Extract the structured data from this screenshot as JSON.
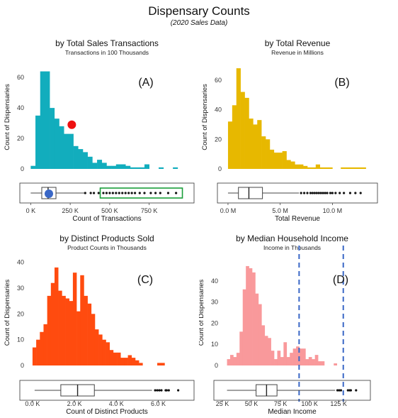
{
  "figure": {
    "title": "Dispensary Counts",
    "subtitle": "(2020 Sales Data)"
  },
  "chart_data": [
    {
      "id": "A",
      "type": "histogram",
      "title": "by Total Sales Transactions",
      "subtitle": "Transactions in 100 Thousands",
      "tag": "(A)",
      "ylabel": "Count of Dispensaries",
      "xlabel": "Count of Transactions",
      "color": "#12adbd",
      "ylim": [
        0,
        68
      ],
      "xlim": [
        -15000,
        980000
      ],
      "yticks": [
        0,
        20,
        40,
        60
      ],
      "xticks": [
        {
          "v": 0,
          "label": "0 K"
        },
        {
          "v": 250000,
          "label": "250 K"
        },
        {
          "v": 500000,
          "label": "500 K"
        },
        {
          "v": 750000,
          "label": "750 K"
        }
      ],
      "bin_start": 0,
      "bin_width": 30000,
      "counts": [
        2,
        35,
        64,
        64,
        40,
        33,
        28,
        23,
        23,
        15,
        13,
        11,
        8,
        4,
        6,
        4,
        2,
        2,
        3,
        3,
        2,
        1,
        1,
        1,
        3,
        0,
        0,
        1,
        0,
        0,
        1
      ],
      "marker_point": {
        "x": 260000,
        "y": 29,
        "color": "#ee1111"
      },
      "boxplot": {
        "min": 0,
        "q1": 70000,
        "median": 110000,
        "q3": 160000,
        "whisker_high": 340000,
        "outliers": [
          345000,
          380000,
          400000,
          430000,
          460000,
          480000,
          500000,
          520000,
          540000,
          560000,
          580000,
          600000,
          620000,
          640000,
          660000,
          690000,
          720000,
          760000,
          790000,
          820000,
          870000,
          920000
        ]
      },
      "box_marker": {
        "x": 115000,
        "color": "#3a67c6"
      },
      "highlight_range": [
        440000,
        960000
      ],
      "highlight_color": "#1a9e3a"
    },
    {
      "id": "B",
      "type": "histogram",
      "title": "by Total Revenue",
      "subtitle": "Revenue in Millions",
      "tag": "(B)",
      "ylabel": "Count of Dispensaries",
      "xlabel": "Total Revenue",
      "color": "#e7b800",
      "ylim": [
        0,
        70
      ],
      "xlim": [
        -200000,
        13500000
      ],
      "yticks": [
        0,
        20,
        40,
        60
      ],
      "xticks": [
        {
          "v": 0,
          "label": "0.0 M"
        },
        {
          "v": 5000000,
          "label": "5.0 M"
        },
        {
          "v": 10000000,
          "label": "10.0 M"
        }
      ],
      "bin_start": 0,
      "bin_width": 400000,
      "counts": [
        32,
        43,
        68,
        52,
        48,
        34,
        30,
        33,
        22,
        20,
        13,
        11,
        11,
        12,
        6,
        5,
        3,
        3,
        2,
        1,
        1,
        3,
        1,
        1,
        1,
        0,
        0,
        1,
        1,
        1,
        1,
        1,
        1
      ],
      "boxplot": {
        "min": 0,
        "q1": 1000000,
        "median": 2000000,
        "q3": 3300000,
        "whisker_high": 6800000,
        "outliers": [
          7000000,
          7300000,
          7600000,
          7900000,
          8100000,
          8300000,
          8500000,
          8700000,
          8900000,
          9100000,
          9300000,
          9500000,
          9800000,
          10000000,
          10300000,
          10700000,
          11100000,
          11700000,
          12200000,
          12700000
        ]
      }
    },
    {
      "id": "C",
      "type": "histogram",
      "title": "by Distinct Products Sold",
      "subtitle": "Product Counts in Thousands",
      "tag": "(C)",
      "ylabel": "Count of Dispensaries",
      "xlabel": "Count of Distinct Products",
      "color": "#ff4b0f",
      "ylim": [
        0,
        41
      ],
      "xlim": [
        -200,
        7300
      ],
      "yticks": [
        0,
        10,
        20,
        30,
        40
      ],
      "xticks": [
        {
          "v": 0,
          "label": "0.0 K"
        },
        {
          "v": 2000,
          "label": "2.0 K"
        },
        {
          "v": 4000,
          "label": "4.0 K"
        },
        {
          "v": 6000,
          "label": "6.0 K"
        }
      ],
      "bin_start": 0,
      "bin_width": 175,
      "counts": [
        7,
        10,
        13,
        16,
        27,
        32,
        38,
        29,
        27,
        26,
        25,
        36,
        21,
        35,
        27,
        24,
        20,
        14,
        12,
        10,
        9,
        6,
        5,
        5,
        3,
        3,
        4,
        3,
        2,
        1,
        0,
        0,
        0,
        0,
        1,
        1,
        0,
        0,
        0,
        0
      ],
      "boxplot": {
        "min": 100,
        "q1": 1350,
        "median": 2150,
        "q3": 2950,
        "whisker_high": 5700,
        "outliers": [
          5850,
          5950,
          6050,
          6150,
          6350,
          6400,
          6500,
          6950
        ]
      }
    },
    {
      "id": "D",
      "type": "histogram",
      "title": "by Median Household Income",
      "subtitle": "Income in Thousands",
      "tag": "(D)",
      "ylabel": "Count of Dispensaries",
      "xlabel": "Median Income",
      "color": "#f9999b",
      "ylim": [
        0,
        50
      ],
      "xlim": [
        25000,
        145000
      ],
      "yticks": [
        0,
        10,
        20,
        30,
        40
      ],
      "xticks": [
        {
          "v": 25000,
          "label": "25 K"
        },
        {
          "v": 50000,
          "label": "50 K"
        },
        {
          "v": 75000,
          "label": "75 K"
        },
        {
          "v": 100000,
          "label": "100 K"
        },
        {
          "v": 125000,
          "label": "125 K"
        }
      ],
      "bin_start": 29000,
      "bin_width": 2700,
      "counts": [
        3,
        5,
        4,
        6,
        16,
        36,
        47,
        46,
        44,
        34,
        29,
        19,
        14,
        13,
        7,
        3,
        7,
        4,
        11,
        4,
        6,
        8,
        9,
        8,
        8,
        3,
        4,
        3,
        5,
        2,
        2,
        0,
        0,
        0,
        1
      ],
      "dashed_lines": [
        91000,
        129000
      ],
      "dashed_color": "#3a67c6",
      "boxplot": {
        "min": 29000,
        "q1": 54000,
        "median": 63000,
        "q3": 72000,
        "whisker_high": 122000,
        "outliers": [
          124000,
          125500,
          127000,
          133000,
          134500,
          135500,
          140000
        ]
      }
    }
  ]
}
